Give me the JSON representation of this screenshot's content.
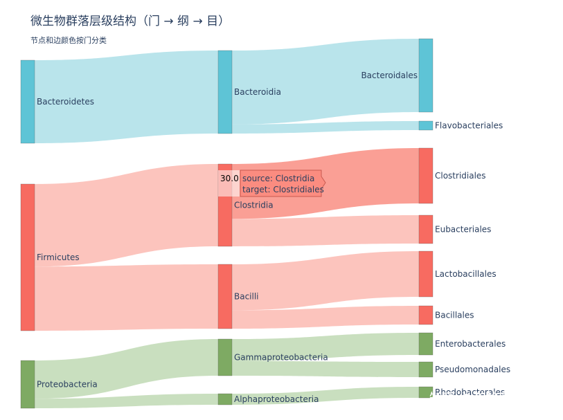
{
  "title": "微生物群落层级结构（门 → 纲 → 目）",
  "subtitle": "节点和边颜色按门分类",
  "watermark": "知乎 @美格基因",
  "colors": {
    "Bacteroidetes": "#5ec4d6",
    "Firmicutes": "#f76b61",
    "Proteobacteria": "#7eaa63"
  },
  "link_colors": {
    "Bacteroidetes": "#a8dde6",
    "Firmicutes": "#fbb5ad",
    "Proteobacteria": "#bcd7af"
  },
  "tooltip": {
    "value": "30.0",
    "source": "source: Clostridia",
    "target": "target: Clostridiales"
  },
  "chart_data": {
    "type": "sankey",
    "title": "微生物群落层级结构（门 → 纲 → 目）",
    "subtitle": "节点和边颜色按门分类",
    "levels": [
      "门",
      "纲",
      "目"
    ],
    "nodes": [
      {
        "name": "Bacteroidetes",
        "phylum": "Bacteroidetes",
        "level": 0
      },
      {
        "name": "Firmicutes",
        "phylum": "Firmicutes",
        "level": 0
      },
      {
        "name": "Proteobacteria",
        "phylum": "Proteobacteria",
        "level": 0
      },
      {
        "name": "Bacteroidia",
        "phylum": "Bacteroidetes",
        "level": 1
      },
      {
        "name": "Clostridia",
        "phylum": "Firmicutes",
        "level": 1
      },
      {
        "name": "Bacilli",
        "phylum": "Firmicutes",
        "level": 1
      },
      {
        "name": "Gammaproteobacteria",
        "phylum": "Proteobacteria",
        "level": 1
      },
      {
        "name": "Alphaproteobacteria",
        "phylum": "Proteobacteria",
        "level": 1
      },
      {
        "name": "Bacteroidales",
        "phylum": "Bacteroidetes",
        "level": 2
      },
      {
        "name": "Flavobacteriales",
        "phylum": "Bacteroidetes",
        "level": 2
      },
      {
        "name": "Clostridiales",
        "phylum": "Firmicutes",
        "level": 2
      },
      {
        "name": "Eubacteriales",
        "phylum": "Firmicutes",
        "level": 2
      },
      {
        "name": "Lactobacillales",
        "phylum": "Firmicutes",
        "level": 2
      },
      {
        "name": "Bacillales",
        "phylum": "Firmicutes",
        "level": 2
      },
      {
        "name": "Enterobacterales",
        "phylum": "Proteobacteria",
        "level": 2
      },
      {
        "name": "Pseudomonadales",
        "phylum": "Proteobacteria",
        "level": 2
      },
      {
        "name": "Rhodobacterales",
        "phylum": "Proteobacteria",
        "level": 2
      }
    ],
    "links": [
      {
        "source": "Bacteroidetes",
        "target": "Bacteroidia",
        "value": 45
      },
      {
        "source": "Firmicutes",
        "target": "Clostridia",
        "value": 45
      },
      {
        "source": "Firmicutes",
        "target": "Bacilli",
        "value": 35
      },
      {
        "source": "Proteobacteria",
        "target": "Gammaproteobacteria",
        "value": 20
      },
      {
        "source": "Proteobacteria",
        "target": "Alphaproteobacteria",
        "value": 5
      },
      {
        "source": "Bacteroidia",
        "target": "Bacteroidales",
        "value": 40
      },
      {
        "source": "Bacteroidia",
        "target": "Flavobacteriales",
        "value": 5
      },
      {
        "source": "Clostridia",
        "target": "Clostridiales",
        "value": 30
      },
      {
        "source": "Clostridia",
        "target": "Eubacteriales",
        "value": 15
      },
      {
        "source": "Bacilli",
        "target": "Lactobacillales",
        "value": 25
      },
      {
        "source": "Bacilli",
        "target": "Bacillales",
        "value": 10
      },
      {
        "source": "Gammaproteobacteria",
        "target": "Enterobacterales",
        "value": 12
      },
      {
        "source": "Gammaproteobacteria",
        "target": "Pseudomonadales",
        "value": 8
      },
      {
        "source": "Alphaproteobacteria",
        "target": "Rhodobacterales",
        "value": 5
      }
    ],
    "highlighted_link": {
      "source": "Clostridia",
      "target": "Clostridiales",
      "value": 30
    }
  }
}
